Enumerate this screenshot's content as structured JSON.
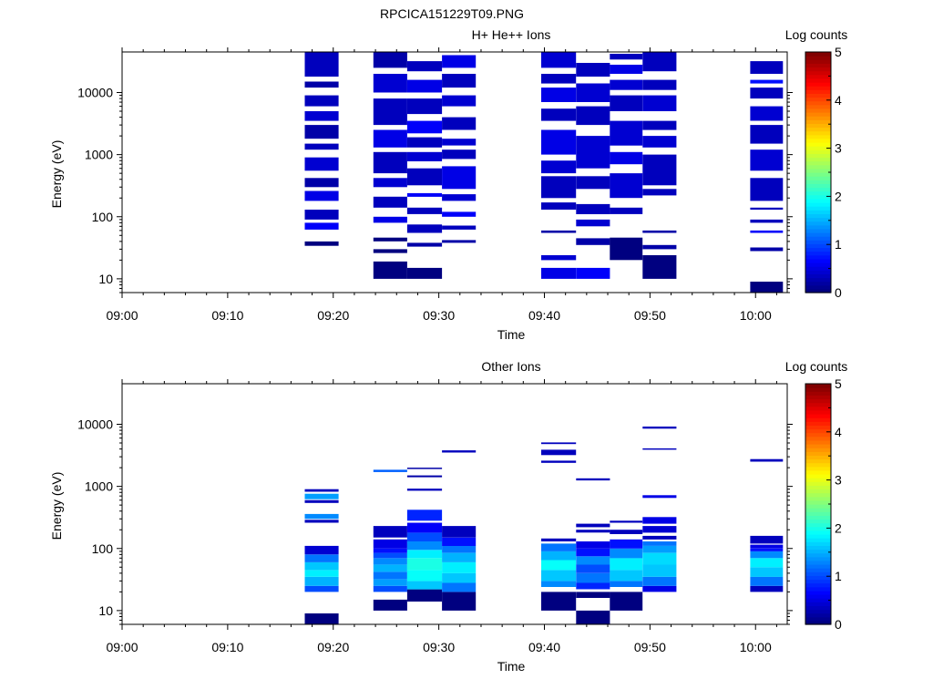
{
  "figure_title": "RPCICA151229T09.PNG",
  "chart_data": [
    {
      "type": "heatmap",
      "title": "H+ He++ Ions",
      "xlabel": "Time",
      "ylabel": "Energy (eV)",
      "x_ticks": [
        "09:00",
        "09:10",
        "09:20",
        "09:30",
        "09:40",
        "09:50",
        "10:00"
      ],
      "x_range_minutes": [
        0,
        63
      ],
      "y_scale": "log",
      "y_range": [
        6,
        45000
      ],
      "y_ticks": [
        "10",
        "100",
        "1000",
        "10000"
      ],
      "colorbar": {
        "label": "Log counts",
        "ticks": [
          "0",
          "1",
          "2",
          "3",
          "4",
          "5"
        ],
        "range": [
          0,
          5
        ]
      },
      "columns": [
        {
          "t0": 17.3,
          "t1": 20.5,
          "bins": [
            [
              34,
              40,
              0
            ],
            [
              62,
              80,
              0.6
            ],
            [
              90,
              130,
              0.3
            ],
            [
              180,
              260,
              0.5
            ],
            [
              300,
              420,
              0.2
            ],
            [
              550,
              900,
              0.4
            ],
            [
              1200,
              1500,
              0.3
            ],
            [
              1800,
              3000,
              0.2
            ],
            [
              3500,
              5000,
              0.4
            ],
            [
              6000,
              9000,
              0.3
            ],
            [
              12000,
              15000,
              0.2
            ],
            [
              18000,
              45000,
              0.3
            ]
          ]
        },
        {
          "t0": 23.8,
          "t1": 27,
          "bins": [
            [
              10,
              19,
              0
            ],
            [
              26,
              30,
              0
            ],
            [
              40,
              46,
              0
            ],
            [
              80,
              100,
              0.5
            ],
            [
              140,
              210,
              0.3
            ],
            [
              300,
              420,
              0.4
            ],
            [
              500,
              1100,
              0.3
            ],
            [
              1300,
              2500,
              0.5
            ],
            [
              3000,
              8000,
              0.3
            ],
            [
              10000,
              20000,
              0.4
            ],
            [
              25000,
              45000,
              0.2
            ]
          ]
        },
        {
          "t0": 27,
          "t1": 30.3,
          "bins": [
            [
              10,
              15,
              0
            ],
            [
              33,
              38,
              0.2
            ],
            [
              55,
              75,
              0.3
            ],
            [
              110,
              140,
              0.3
            ],
            [
              210,
              240,
              0.6
            ],
            [
              320,
              600,
              0.3
            ],
            [
              780,
              1100,
              0.4
            ],
            [
              1300,
              1900,
              0.3
            ],
            [
              2200,
              3500,
              0.6
            ],
            [
              4500,
              8000,
              0.3
            ],
            [
              10000,
              16000,
              0.5
            ],
            [
              22000,
              32000,
              0.3
            ]
          ]
        },
        {
          "t0": 30.3,
          "t1": 33.5,
          "bins": [
            [
              38,
              42,
              0.2
            ],
            [
              62,
              72,
              0.3
            ],
            [
              100,
              120,
              0.6
            ],
            [
              180,
              230,
              0.4
            ],
            [
              280,
              650,
              0.5
            ],
            [
              850,
              1200,
              0.3
            ],
            [
              1400,
              1800,
              0.4
            ],
            [
              2500,
              4000,
              0.3
            ],
            [
              6000,
              9000,
              0.4
            ],
            [
              12000,
              20000,
              0.3
            ],
            [
              25000,
              40000,
              0.5
            ]
          ]
        },
        {
          "t0": 39.7,
          "t1": 43,
          "bins": [
            [
              10,
              15,
              0.5
            ],
            [
              20,
              24,
              0.4
            ],
            [
              55,
              60,
              0.2
            ],
            [
              130,
              170,
              0.3
            ],
            [
              200,
              450,
              0.3
            ],
            [
              500,
              800,
              0.4
            ],
            [
              1000,
              2500,
              0.5
            ],
            [
              3500,
              5500,
              0.3
            ],
            [
              7000,
              12000,
              0.5
            ],
            [
              14000,
              20000,
              0.3
            ],
            [
              25000,
              45000,
              0.4
            ]
          ]
        },
        {
          "t0": 43,
          "t1": 46.2,
          "bins": [
            [
              10,
              15,
              0.6
            ],
            [
              35,
              45,
              0.2
            ],
            [
              70,
              90,
              0.4
            ],
            [
              110,
              160,
              0.3
            ],
            [
              280,
              450,
              0.3
            ],
            [
              600,
              2000,
              0.4
            ],
            [
              3000,
              6000,
              0.3
            ],
            [
              7000,
              14000,
              0.4
            ],
            [
              18000,
              30000,
              0.3
            ]
          ]
        },
        {
          "t0": 46.2,
          "t1": 49.3,
          "bins": [
            [
              20,
              46,
              0
            ],
            [
              110,
              140,
              0.3
            ],
            [
              200,
              500,
              0.4
            ],
            [
              700,
              1100,
              0.5
            ],
            [
              1400,
              3500,
              0.4
            ],
            [
              5000,
              9000,
              0.3
            ],
            [
              11000,
              16000,
              0.4
            ],
            [
              20000,
              28000,
              0.5
            ],
            [
              34000,
              42000,
              0.3
            ]
          ]
        },
        {
          "t0": 49.3,
          "t1": 52.5,
          "bins": [
            [
              10,
              24,
              0
            ],
            [
              30,
              35,
              0.2
            ],
            [
              55,
              60,
              0.2
            ],
            [
              220,
              280,
              0.3
            ],
            [
              320,
              1000,
              0.3
            ],
            [
              1300,
              2000,
              0.4
            ],
            [
              2500,
              3500,
              0.3
            ],
            [
              5000,
              9000,
              0.4
            ],
            [
              11000,
              16000,
              0.3
            ],
            [
              22000,
              45000,
              0.3
            ]
          ]
        },
        {
          "t0": 59.5,
          "t1": 62.6,
          "bins": [
            [
              6,
              9,
              0
            ],
            [
              28,
              32,
              0.2
            ],
            [
              55,
              60,
              0.6
            ],
            [
              80,
              90,
              0.3
            ],
            [
              130,
              140,
              0.3
            ],
            [
              180,
              420,
              0.3
            ],
            [
              550,
              1200,
              0.4
            ],
            [
              1500,
              3000,
              0.3
            ],
            [
              3500,
              6000,
              0.4
            ],
            [
              8000,
              12000,
              0.3
            ],
            [
              14000,
              16000,
              0.7
            ],
            [
              20000,
              32000,
              0.3
            ]
          ]
        }
      ]
    },
    {
      "type": "heatmap",
      "title": "Other Ions",
      "xlabel": "Time",
      "ylabel": "Energy (eV)",
      "x_ticks": [
        "09:00",
        "09:10",
        "09:20",
        "09:30",
        "09:40",
        "09:50",
        "10:00"
      ],
      "x_range_minutes": [
        0,
        63
      ],
      "y_scale": "log",
      "y_range": [
        6,
        45000
      ],
      "y_ticks": [
        "10",
        "100",
        "1000",
        "10000"
      ],
      "colorbar": {
        "label": "Log counts",
        "ticks": [
          "0",
          "1",
          "2",
          "3",
          "4",
          "5"
        ],
        "range": [
          0,
          5
        ]
      },
      "columns": [
        {
          "t0": 17.3,
          "t1": 20.5,
          "bins": [
            [
              6,
              9,
              0
            ],
            [
              20,
              25,
              1.0
            ],
            [
              25,
              35,
              1.5
            ],
            [
              35,
              45,
              1.8
            ],
            [
              45,
              60,
              1.6
            ],
            [
              60,
              80,
              1.2
            ],
            [
              80,
              110,
              0.4
            ],
            [
              260,
              290,
              0.3
            ],
            [
              300,
              360,
              1.3
            ],
            [
              540,
              600,
              0.3
            ],
            [
              620,
              760,
              1.4
            ],
            [
              820,
              900,
              0.3
            ]
          ]
        },
        {
          "t0": 23.8,
          "t1": 27,
          "bins": [
            [
              10,
              15,
              0
            ],
            [
              20,
              25,
              1.0
            ],
            [
              25,
              32,
              1.4
            ],
            [
              32,
              42,
              1.2
            ],
            [
              42,
              55,
              1.5
            ],
            [
              55,
              70,
              1.3
            ],
            [
              70,
              85,
              1.0
            ],
            [
              85,
              100,
              0.7
            ],
            [
              100,
              140,
              0.5
            ],
            [
              150,
              230,
              0.3
            ],
            [
              1700,
              1850,
              1.1
            ]
          ]
        },
        {
          "t0": 27,
          "t1": 30.3,
          "bins": [
            [
              14,
              22,
              0
            ],
            [
              22,
              30,
              1.6
            ],
            [
              30,
              45,
              1.9
            ],
            [
              45,
              70,
              2.0
            ],
            [
              70,
              95,
              1.8
            ],
            [
              95,
              130,
              1.3
            ],
            [
              130,
              180,
              1.0
            ],
            [
              180,
              260,
              0.6
            ],
            [
              280,
              420,
              0.8
            ],
            [
              850,
              920,
              0.3
            ],
            [
              1400,
              1500,
              0.2
            ],
            [
              1900,
              2000,
              0.2
            ]
          ]
        },
        {
          "t0": 30.3,
          "t1": 33.5,
          "bins": [
            [
              10,
              20,
              0
            ],
            [
              20,
              28,
              1.2
            ],
            [
              28,
              40,
              1.6
            ],
            [
              40,
              60,
              1.8
            ],
            [
              60,
              85,
              1.5
            ],
            [
              85,
              110,
              1.2
            ],
            [
              110,
              150,
              0.7
            ],
            [
              150,
              230,
              0.3
            ],
            [
              3500,
              3800,
              0.3
            ]
          ]
        },
        {
          "t0": 39.7,
          "t1": 43,
          "bins": [
            [
              10,
              20,
              0
            ],
            [
              24,
              30,
              1.3
            ],
            [
              30,
              45,
              1.6
            ],
            [
              45,
              65,
              1.9
            ],
            [
              65,
              90,
              1.5
            ],
            [
              90,
              120,
              1.2
            ],
            [
              130,
              145,
              0.3
            ],
            [
              2400,
              2600,
              0.3
            ],
            [
              3200,
              3900,
              0.3
            ],
            [
              4800,
              5100,
              0.3
            ]
          ]
        },
        {
          "t0": 43,
          "t1": 46.2,
          "bins": [
            [
              6,
              10,
              0
            ],
            [
              16,
              20,
              0
            ],
            [
              22,
              28,
              0.8
            ],
            [
              28,
              40,
              1.2
            ],
            [
              40,
              55,
              1.0
            ],
            [
              55,
              75,
              1.3
            ],
            [
              75,
              100,
              0.7
            ],
            [
              100,
              130,
              0.5
            ],
            [
              180,
              200,
              0.3
            ],
            [
              220,
              250,
              0.3
            ],
            [
              1250,
              1350,
              0.3
            ]
          ]
        },
        {
          "t0": 46.2,
          "t1": 49.3,
          "bins": [
            [
              10,
              20,
              0
            ],
            [
              24,
              30,
              1.2
            ],
            [
              30,
              45,
              1.6
            ],
            [
              45,
              70,
              1.8
            ],
            [
              70,
              100,
              1.3
            ],
            [
              100,
              140,
              0.7
            ],
            [
              170,
              200,
              0.3
            ],
            [
              260,
              280,
              0.3
            ]
          ]
        },
        {
          "t0": 49.3,
          "t1": 52.5,
          "bins": [
            [
              20,
              25,
              0.5
            ],
            [
              25,
              35,
              1.2
            ],
            [
              35,
              55,
              1.6
            ],
            [
              55,
              85,
              1.7
            ],
            [
              85,
              110,
              1.4
            ],
            [
              110,
              130,
              1.2
            ],
            [
              140,
              160,
              0.3
            ],
            [
              180,
              230,
              0.4
            ],
            [
              250,
              320,
              0.5
            ],
            [
              650,
              720,
              0.5
            ],
            [
              3900,
              4100,
              0.3
            ],
            [
              8500,
              9200,
              0.3
            ]
          ]
        },
        {
          "t0": 59.5,
          "t1": 62.6,
          "bins": [
            [
              20,
              25,
              0.3
            ],
            [
              25,
              35,
              1.2
            ],
            [
              35,
              50,
              1.6
            ],
            [
              50,
              70,
              1.8
            ],
            [
              70,
              90,
              1.3
            ],
            [
              90,
              100,
              0.7
            ],
            [
              100,
              115,
              0.5
            ],
            [
              120,
              160,
              0.3
            ],
            [
              2500,
              2750,
              0.3
            ]
          ]
        }
      ]
    }
  ]
}
